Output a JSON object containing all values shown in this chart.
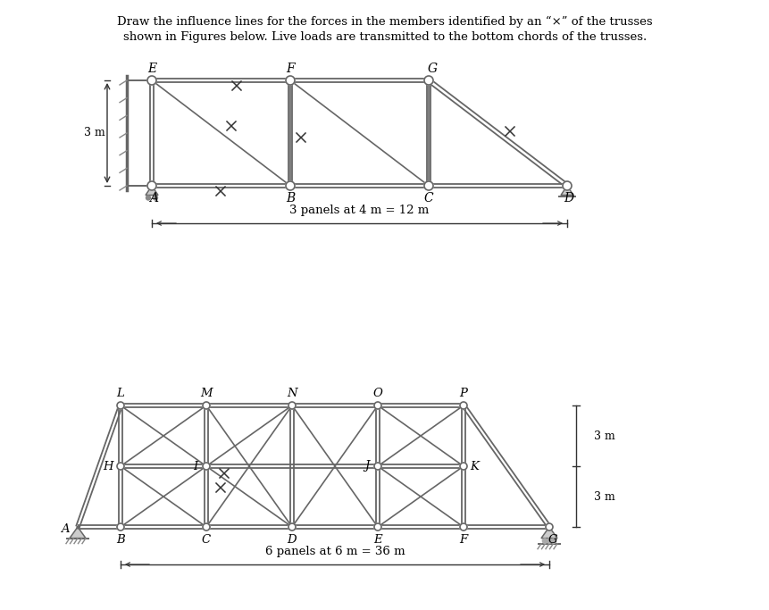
{
  "bg_color": "#ffffff",
  "text_color": "#000000",
  "title_line1": "Draw the influence lines for the forces in the members identified by an “×” of the trusses",
  "title_line2": "shown in Figures below. Live loads are transmitted to the bottom chords of the trusses.",
  "truss1_panel_label": "3 panels at 4 m = 12 m",
  "truss2_panel_label": "6 panels at 6 m = 36 m",
  "height_label_3m": "3 m",
  "member_color": "#666666",
  "node_color": "#666666",
  "node_fill": "#ffffff"
}
